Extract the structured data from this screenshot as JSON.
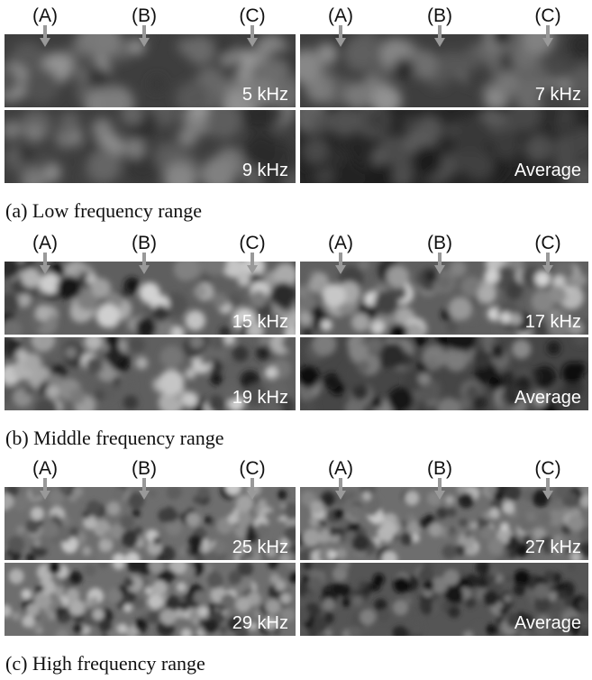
{
  "panels": [
    {
      "caption": "(a) Low frequency range",
      "columns": [
        {
          "markers": [
            "(A)",
            "(B)",
            "(C)"
          ],
          "images": [
            "5 kHz",
            "9 kHz"
          ]
        },
        {
          "markers": [
            "(A)",
            "(B)",
            "(C)"
          ],
          "images": [
            "7 kHz",
            "Average"
          ]
        }
      ]
    },
    {
      "caption": "(b) Middle frequency range",
      "columns": [
        {
          "markers": [
            "(A)",
            "(B)",
            "(C)"
          ],
          "images": [
            "15 kHz",
            "19 kHz"
          ]
        },
        {
          "markers": [
            "(A)",
            "(B)",
            "(C)"
          ],
          "images": [
            "17 kHz",
            "Average"
          ]
        }
      ]
    },
    {
      "caption": "(c) High frequency range",
      "columns": [
        {
          "markers": [
            "(A)",
            "(B)",
            "(C)"
          ],
          "images": [
            "25 kHz",
            "29 kHz"
          ]
        },
        {
          "markers": [
            "(A)",
            "(B)",
            "(C)"
          ],
          "images": [
            "27 kHz",
            "Average"
          ]
        }
      ]
    }
  ]
}
